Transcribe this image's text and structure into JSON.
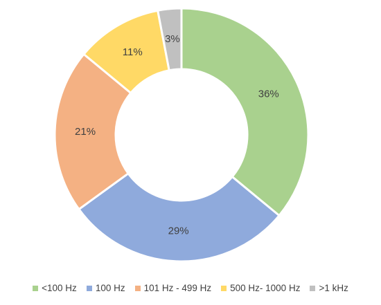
{
  "chart_data": {
    "type": "pie",
    "donut": true,
    "categories": [
      "<100 Hz",
      "100 Hz",
      "101 Hz - 499 Hz",
      "500 Hz- 1000 Hz",
      ">1 kHz"
    ],
    "values": [
      36,
      29,
      21,
      11,
      3
    ],
    "value_labels": [
      "36%",
      "29%",
      "21%",
      "11%",
      "3%"
    ],
    "colors": [
      "#a9d18e",
      "#8faadc",
      "#f4b183",
      "#ffd966",
      "#c0c0c0"
    ],
    "legend_position": "bottom",
    "title": ""
  }
}
